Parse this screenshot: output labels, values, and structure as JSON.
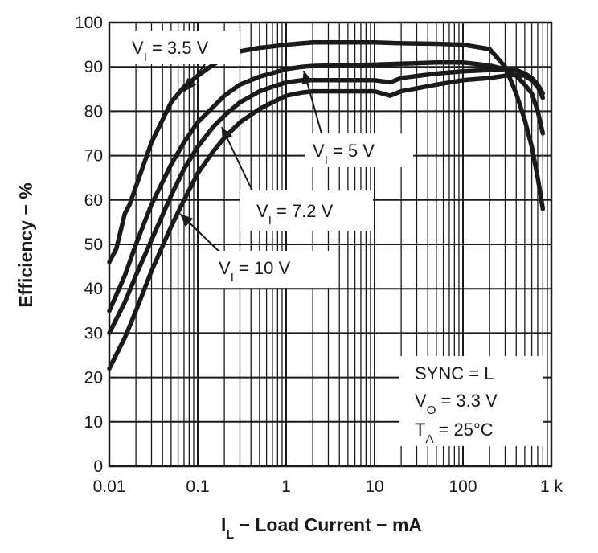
{
  "chart_data": {
    "type": "line",
    "title": "",
    "xlabel": {
      "main": "I",
      "sub": "L",
      "rest": " − Load Current − mA"
    },
    "ylabel": "Efficiency − %",
    "x_scale": "log",
    "xlim": [
      0.01,
      1000
    ],
    "ylim": [
      0,
      100
    ],
    "x_ticks": [
      0.01,
      0.1,
      1,
      10,
      100,
      1000
    ],
    "x_tick_labels": [
      "0.01",
      "0.1",
      "1",
      "10",
      "100",
      "1 k"
    ],
    "y_ticks": [
      0,
      10,
      20,
      30,
      40,
      50,
      60,
      70,
      80,
      90,
      100
    ],
    "y_tick_labels": [
      "0",
      "10",
      "20",
      "30",
      "40",
      "50",
      "60",
      "70",
      "80",
      "90",
      "100"
    ],
    "grid": true,
    "line_color": "#1a1a1a",
    "series": [
      {
        "name": {
          "main": "V",
          "sub": "I",
          "rest": " = 3.5 V"
        },
        "x": [
          0.01,
          0.012,
          0.015,
          0.017,
          0.02,
          0.03,
          0.05,
          0.07,
          0.1,
          0.15,
          0.2,
          0.3,
          0.5,
          0.7,
          1,
          1.5,
          2,
          5,
          10,
          20,
          50,
          100,
          200,
          300,
          400,
          500,
          600,
          700,
          800
        ],
        "y": [
          46,
          49,
          57,
          59,
          63,
          73,
          82,
          85.5,
          88,
          90.5,
          92,
          93.5,
          94.3,
          94.6,
          95,
          95.3,
          95.5,
          95.5,
          95.5,
          95.3,
          95.2,
          95,
          94,
          90,
          84,
          78,
          72,
          65,
          58
        ]
      },
      {
        "name": {
          "main": "V",
          "sub": "I",
          "rest": " = 5 V"
        },
        "x": [
          0.01,
          0.015,
          0.02,
          0.03,
          0.05,
          0.07,
          0.1,
          0.15,
          0.2,
          0.3,
          0.5,
          0.7,
          1,
          1.5,
          2,
          5,
          10,
          20,
          50,
          100,
          200,
          300,
          400,
          500,
          600,
          700,
          800
        ],
        "y": [
          35,
          43,
          50,
          59,
          68,
          73,
          77.5,
          81,
          83.5,
          86,
          87.8,
          88.6,
          89.5,
          90,
          90.2,
          90.4,
          90.5,
          90.7,
          91,
          91,
          90.3,
          89.5,
          88,
          86,
          84,
          80,
          75
        ]
      },
      {
        "name": {
          "main": "V",
          "sub": "I",
          "rest": " = 7.2 V"
        },
        "x": [
          0.01,
          0.015,
          0.02,
          0.03,
          0.05,
          0.07,
          0.1,
          0.15,
          0.2,
          0.3,
          0.5,
          0.7,
          1,
          1.5,
          2,
          5,
          10,
          15,
          20,
          50,
          100,
          200,
          300,
          400,
          500,
          600,
          700,
          800
        ],
        "y": [
          30,
          37,
          43,
          51,
          61,
          67,
          72,
          76.5,
          79,
          82,
          84.5,
          85.5,
          86.5,
          87,
          87,
          87,
          87,
          86.5,
          87.5,
          88.5,
          89,
          89.3,
          89.5,
          89.3,
          88.5,
          87.5,
          86,
          84
        ]
      },
      {
        "name": {
          "main": "V",
          "sub": "I",
          "rest": " = 10 V"
        },
        "x": [
          0.01,
          0.015,
          0.02,
          0.03,
          0.05,
          0.07,
          0.1,
          0.15,
          0.2,
          0.3,
          0.5,
          0.7,
          1,
          1.5,
          2,
          5,
          10,
          15,
          20,
          50,
          100,
          200,
          300,
          400,
          500,
          600,
          700,
          800
        ],
        "y": [
          22,
          29,
          35,
          44,
          54,
          60,
          66,
          71,
          74,
          77.5,
          80.5,
          82,
          83.5,
          84.2,
          84.5,
          84.5,
          84.5,
          83.5,
          84.5,
          86,
          87,
          87.5,
          88,
          88.2,
          88,
          87,
          85.5,
          83
        ]
      }
    ],
    "annotations": [
      {
        "id": "ann-35",
        "parts": [
          {
            "t": "V"
          },
          {
            "t": "I",
            "sub": true
          },
          {
            "t": " = 3.5 V"
          }
        ]
      },
      {
        "id": "ann-5",
        "parts": [
          {
            "t": "V"
          },
          {
            "t": "I",
            "sub": true
          },
          {
            "t": " = 5 V"
          }
        ]
      },
      {
        "id": "ann-72",
        "parts": [
          {
            "t": "V"
          },
          {
            "t": "I",
            "sub": true
          },
          {
            "t": " = 7.2 V"
          }
        ]
      },
      {
        "id": "ann-10",
        "parts": [
          {
            "t": "V"
          },
          {
            "t": "I",
            "sub": true
          },
          {
            "t": " = 10 V"
          }
        ]
      },
      {
        "id": "cond-sync",
        "parts": [
          {
            "t": "SYNC = L"
          }
        ]
      },
      {
        "id": "cond-vo",
        "parts": [
          {
            "t": "V"
          },
          {
            "t": "O",
            "sub": true
          },
          {
            "t": " = 3.3 V"
          }
        ]
      },
      {
        "id": "cond-ta",
        "parts": [
          {
            "t": "T"
          },
          {
            "t": "A",
            "sub": true
          },
          {
            "t": " = 25°C"
          }
        ]
      }
    ]
  }
}
